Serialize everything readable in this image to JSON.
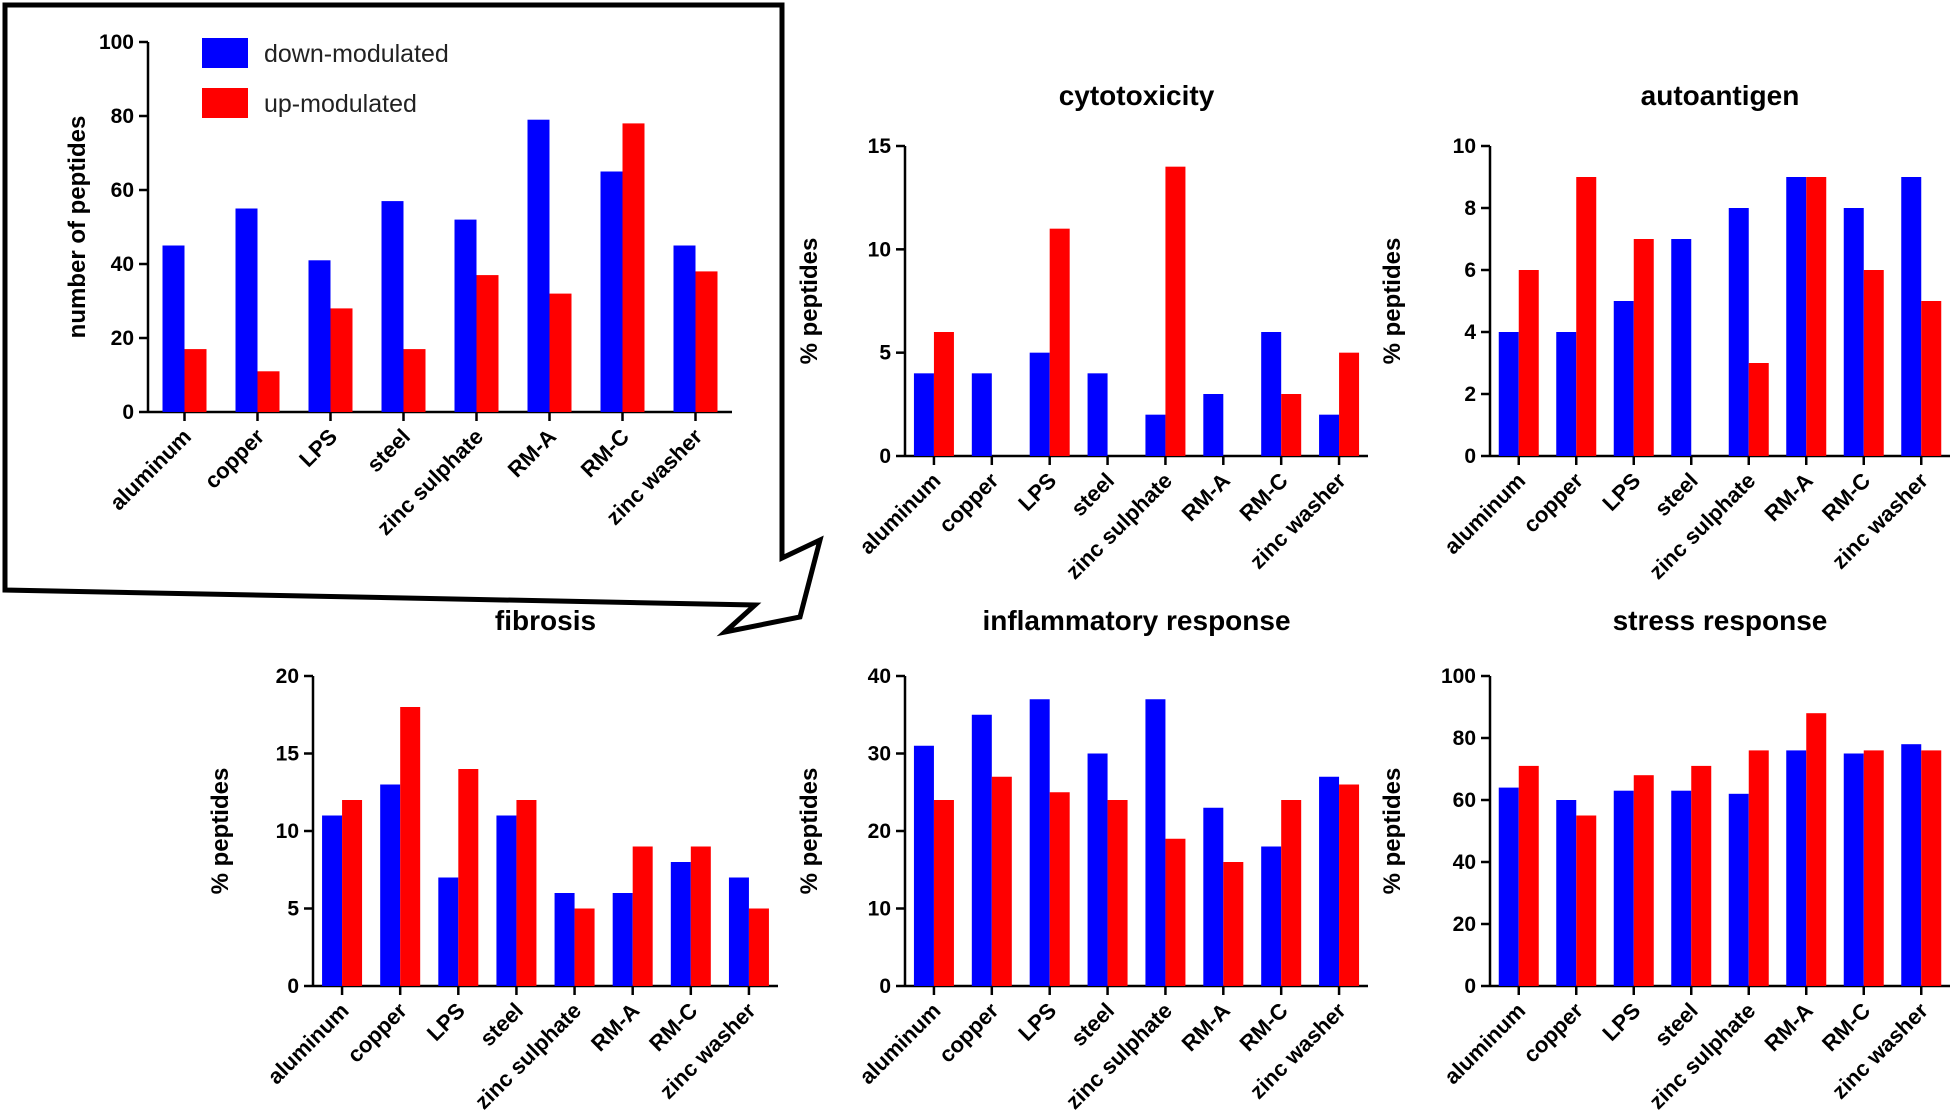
{
  "chart_data": [
    {
      "type": "bar",
      "id": "overview",
      "title": "",
      "xlabel": "",
      "ylabel": "number of peptides",
      "ylim": [
        0,
        100
      ],
      "yticks": [
        0,
        20,
        40,
        60,
        80,
        100
      ],
      "categories": [
        "aluminum",
        "copper",
        "LPS",
        "steel",
        "zinc sulphate",
        "RM-A",
        "RM-C",
        "zinc washer"
      ],
      "series": [
        {
          "name": "down-modulated",
          "values": [
            45,
            55,
            41,
            57,
            52,
            79,
            65,
            45
          ]
        },
        {
          "name": "up-modulated",
          "values": [
            17,
            11,
            28,
            17,
            37,
            32,
            78,
            38
          ]
        }
      ],
      "legend": {
        "position": "top-left",
        "entries": [
          "down-modulated",
          "up-modulated"
        ]
      }
    },
    {
      "type": "bar",
      "id": "cytotoxicity",
      "title": "cytotoxicity",
      "xlabel": "",
      "ylabel": "% peptides",
      "ylim": [
        0,
        15
      ],
      "yticks": [
        0,
        5,
        10,
        15
      ],
      "categories": [
        "aluminum",
        "copper",
        "LPS",
        "steel",
        "zinc sulphate",
        "RM-A",
        "RM-C",
        "zinc washer"
      ],
      "series": [
        {
          "name": "down-modulated",
          "values": [
            4,
            4,
            5,
            4,
            2,
            3,
            6,
            2
          ]
        },
        {
          "name": "up-modulated",
          "values": [
            6,
            0,
            11,
            0,
            14,
            0,
            3,
            5
          ]
        }
      ]
    },
    {
      "type": "bar",
      "id": "autoantigen",
      "title": "autoantigen",
      "xlabel": "",
      "ylabel": "% peptides",
      "ylim": [
        0,
        10
      ],
      "yticks": [
        0,
        2,
        4,
        6,
        8,
        10
      ],
      "categories": [
        "aluminum",
        "copper",
        "LPS",
        "steel",
        "zinc sulphate",
        "RM-A",
        "RM-C",
        "zinc washer"
      ],
      "series": [
        {
          "name": "down-modulated",
          "values": [
            4,
            4,
            5,
            7,
            8,
            9,
            8,
            9
          ]
        },
        {
          "name": "up-modulated",
          "values": [
            6,
            9,
            7,
            0,
            3,
            9,
            6,
            5
          ]
        }
      ]
    },
    {
      "type": "bar",
      "id": "fibrosis",
      "title": "fibrosis",
      "xlabel": "",
      "ylabel": "% peptides",
      "ylim": [
        0,
        20
      ],
      "yticks": [
        0,
        5,
        10,
        15,
        20
      ],
      "categories": [
        "aluminum",
        "copper",
        "LPS",
        "steel",
        "zinc sulphate",
        "RM-A",
        "RM-C",
        "zinc washer"
      ],
      "series": [
        {
          "name": "down-modulated",
          "values": [
            11,
            13,
            7,
            11,
            6,
            6,
            8,
            7
          ]
        },
        {
          "name": "up-modulated",
          "values": [
            12,
            18,
            14,
            12,
            5,
            9,
            9,
            5
          ]
        }
      ]
    },
    {
      "type": "bar",
      "id": "inflammatory",
      "title": "inflammatory response",
      "xlabel": "",
      "ylabel": "% peptides",
      "ylim": [
        0,
        40
      ],
      "yticks": [
        0,
        10,
        20,
        30,
        40
      ],
      "categories": [
        "aluminum",
        "copper",
        "LPS",
        "steel",
        "zinc sulphate",
        "RM-A",
        "RM-C",
        "zinc washer"
      ],
      "series": [
        {
          "name": "down-modulated",
          "values": [
            31,
            35,
            37,
            30,
            37,
            23,
            18,
            27
          ]
        },
        {
          "name": "up-modulated",
          "values": [
            24,
            27,
            25,
            24,
            19,
            16,
            24,
            26
          ]
        }
      ]
    },
    {
      "type": "bar",
      "id": "stress",
      "title": "stress response",
      "xlabel": "",
      "ylabel": "% peptides",
      "ylim": [
        0,
        100
      ],
      "yticks": [
        0,
        20,
        40,
        60,
        80,
        100
      ],
      "categories": [
        "aluminum",
        "copper",
        "LPS",
        "steel",
        "zinc sulphate",
        "RM-A",
        "RM-C",
        "zinc washer"
      ],
      "series": [
        {
          "name": "down-modulated",
          "values": [
            64,
            60,
            63,
            63,
            62,
            76,
            75,
            78
          ]
        },
        {
          "name": "up-modulated",
          "values": [
            71,
            55,
            68,
            71,
            76,
            88,
            76,
            76
          ]
        }
      ]
    }
  ],
  "colors": {
    "down": "#0000ff",
    "up": "#ff0000",
    "axis": "#000000"
  }
}
